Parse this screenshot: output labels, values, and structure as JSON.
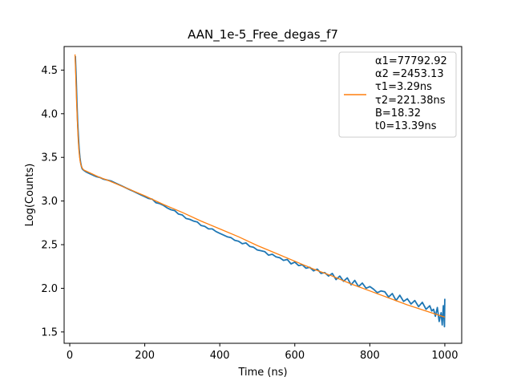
{
  "chart_data": {
    "type": "line",
    "title": "AAN_1e-5_Free_degas_f7",
    "xlabel": "Time (ns)",
    "ylabel": "Log(Counts)",
    "xlim": [
      -15,
      1045
    ],
    "ylim": [
      1.37,
      4.77
    ],
    "x_ticks": [
      0,
      200,
      400,
      600,
      800,
      1000
    ],
    "y_ticks": [
      1.5,
      2.0,
      2.5,
      3.0,
      3.5,
      4.0,
      4.5
    ],
    "x_tick_labels": [
      "0",
      "200",
      "400",
      "600",
      "800",
      "1000"
    ],
    "y_tick_labels": [
      "1.5",
      "2.0",
      "2.5",
      "3.0",
      "3.5",
      "4.0",
      "4.5"
    ],
    "grid": false,
    "legend": {
      "placement": "top-right",
      "entries": [
        "α1=77792.92",
        "α2 =2453.13",
        "τ1=3.29ns",
        "τ2=221.38ns",
        "B=18.32",
        "t0=13.39ns"
      ]
    },
    "series": [
      {
        "role": "data",
        "color": "#1f77b4",
        "x": [
          15,
          17,
          19,
          21,
          23,
          25,
          27,
          29,
          31,
          33,
          35,
          38,
          41,
          45,
          50,
          55,
          60,
          65,
          70,
          80,
          90,
          100,
          110,
          120,
          130,
          140,
          150,
          160,
          170,
          180,
          190,
          200,
          210,
          220,
          230,
          240,
          250,
          260,
          270,
          280,
          290,
          300,
          310,
          320,
          330,
          340,
          350,
          360,
          370,
          380,
          390,
          400,
          410,
          420,
          430,
          440,
          450,
          460,
          470,
          480,
          490,
          500,
          510,
          520,
          530,
          540,
          550,
          560,
          570,
          580,
          590,
          600,
          610,
          620,
          630,
          640,
          650,
          660,
          670,
          680,
          690,
          700,
          710,
          720,
          730,
          740,
          750,
          760,
          770,
          780,
          790,
          800,
          810,
          820,
          830,
          840,
          850,
          860,
          870,
          880,
          890,
          900,
          910,
          920,
          930,
          940,
          950,
          960,
          965,
          970,
          975,
          980,
          985,
          990,
          993,
          996,
          999,
          1000
        ],
        "y": [
          4.66,
          4.42,
          4.15,
          3.92,
          3.74,
          3.6,
          3.5,
          3.44,
          3.4,
          3.37,
          3.36,
          3.35,
          3.34,
          3.33,
          3.32,
          3.31,
          3.3,
          3.29,
          3.28,
          3.27,
          3.25,
          3.24,
          3.23,
          3.21,
          3.19,
          3.17,
          3.15,
          3.13,
          3.11,
          3.09,
          3.07,
          3.05,
          3.03,
          3.02,
          2.98,
          2.97,
          2.95,
          2.92,
          2.9,
          2.89,
          2.85,
          2.84,
          2.8,
          2.79,
          2.77,
          2.76,
          2.72,
          2.71,
          2.68,
          2.68,
          2.65,
          2.63,
          2.61,
          2.59,
          2.58,
          2.55,
          2.54,
          2.51,
          2.52,
          2.48,
          2.47,
          2.44,
          2.43,
          2.42,
          2.38,
          2.39,
          2.36,
          2.35,
          2.32,
          2.33,
          2.28,
          2.3,
          2.26,
          2.27,
          2.23,
          2.24,
          2.2,
          2.22,
          2.17,
          2.18,
          2.14,
          2.17,
          2.1,
          2.14,
          2.08,
          2.12,
          2.04,
          2.09,
          2.02,
          2.06,
          2.0,
          2.02,
          1.99,
          1.95,
          1.97,
          1.96,
          1.9,
          1.94,
          1.86,
          1.92,
          1.85,
          1.88,
          1.82,
          1.86,
          1.79,
          1.84,
          1.76,
          1.8,
          1.74,
          1.76,
          1.68,
          1.78,
          1.62,
          1.72,
          1.58,
          1.8,
          1.56,
          1.88
        ]
      },
      {
        "role": "fit",
        "color": "#ff7f0e",
        "label": "α1=77792.92\nα2 =2453.13\nτ1=3.29ns\nτ2=221.38ns\nB=18.32\nt0=13.39ns",
        "x": [
          14,
          16,
          18,
          20,
          22,
          24,
          26,
          28,
          30,
          33,
          36,
          40,
          45,
          50,
          60,
          70,
          80,
          100,
          150,
          200,
          250,
          300,
          350,
          400,
          450,
          500,
          550,
          600,
          650,
          700,
          750,
          800,
          850,
          900,
          950,
          1000
        ],
        "y": [
          4.68,
          4.44,
          4.17,
          3.94,
          3.75,
          3.61,
          3.51,
          3.45,
          3.41,
          3.38,
          3.36,
          3.35,
          3.34,
          3.33,
          3.31,
          3.29,
          3.27,
          3.24,
          3.15,
          3.06,
          2.96,
          2.87,
          2.77,
          2.68,
          2.59,
          2.49,
          2.4,
          2.31,
          2.22,
          2.14,
          2.05,
          1.97,
          1.89,
          1.81,
          1.74,
          1.67
        ]
      }
    ]
  }
}
